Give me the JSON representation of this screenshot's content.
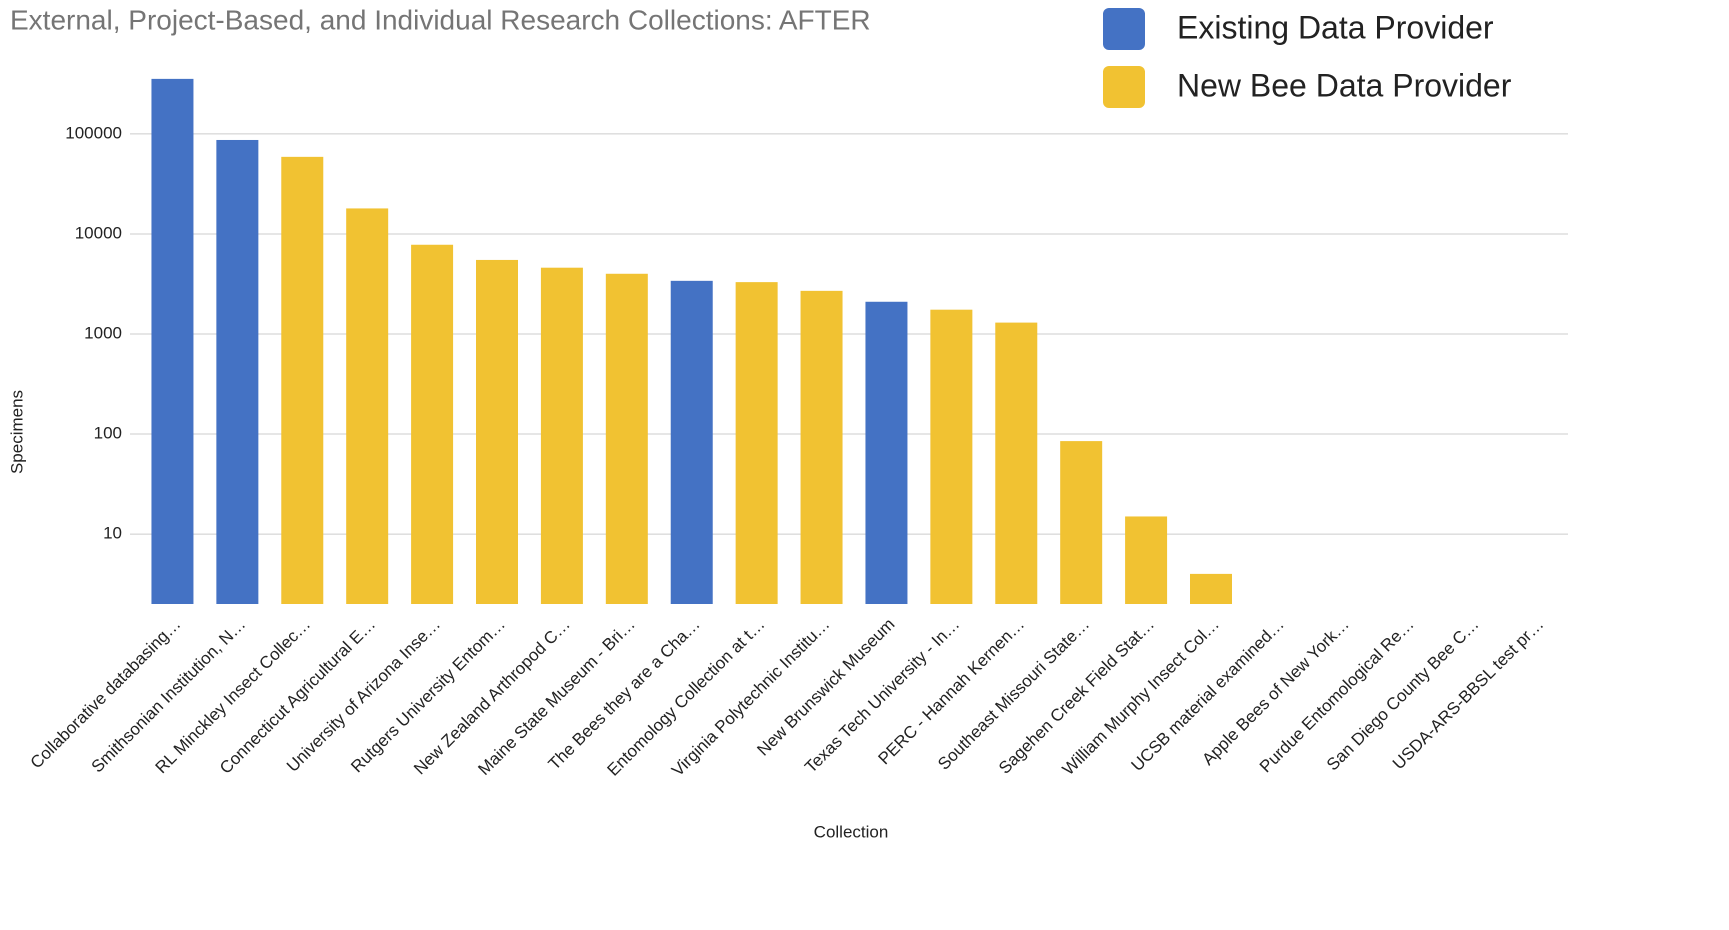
{
  "chart_data": {
    "type": "bar",
    "title": "External, Project-Based, and Individual Research Collections: AFTER",
    "xlabel": "Collection",
    "ylabel": "Specimens",
    "categories": [
      "Collaborative databasing…",
      "Smithsonian Institution, N…",
      "RL Minckley Insect Collec…",
      "Connecticut Agricultural E…",
      "University of Arizona Inse…",
      "Rutgers University Entom…",
      "New Zealand Arthropod C…",
      "Maine State Museum - Bri…",
      "The Bees they are a Cha…",
      "Entomology Collection at t…",
      "Virginia Polytechnic Institu…",
      "New Brunswick Museum",
      "Texas Tech University - In…",
      "PERC - Hannah Kernen…",
      "Southeast Missouri State…",
      "Sagehen Creek Field Stat…",
      "William Murphy Insect Col…",
      "UCSB material examined…",
      "Apple Bees of New York…",
      "Purdue Entomological Re…",
      "San Diego County Bee C…",
      "USDA-ARS-BBSL test pr…"
    ],
    "series": [
      {
        "name": "Existing Data Provider",
        "color": "#4472c4",
        "values": [
          355000,
          87000,
          null,
          null,
          null,
          null,
          null,
          null,
          3400,
          null,
          null,
          2100,
          null,
          null,
          null,
          null,
          null,
          null,
          null,
          null,
          null,
          null
        ]
      },
      {
        "name": "New Bee Data Provider",
        "color": "#f1c232",
        "values": [
          null,
          null,
          59000,
          18000,
          7800,
          5500,
          4600,
          4000,
          null,
          3300,
          2700,
          null,
          1750,
          1300,
          85,
          15,
          4,
          null,
          null,
          null,
          null,
          null
        ]
      }
    ],
    "ylim": [
      2,
      500000
    ],
    "yticks": [
      10,
      100,
      1000,
      10000,
      100000
    ],
    "log_y": true,
    "grid": true,
    "legend": "top-right"
  }
}
